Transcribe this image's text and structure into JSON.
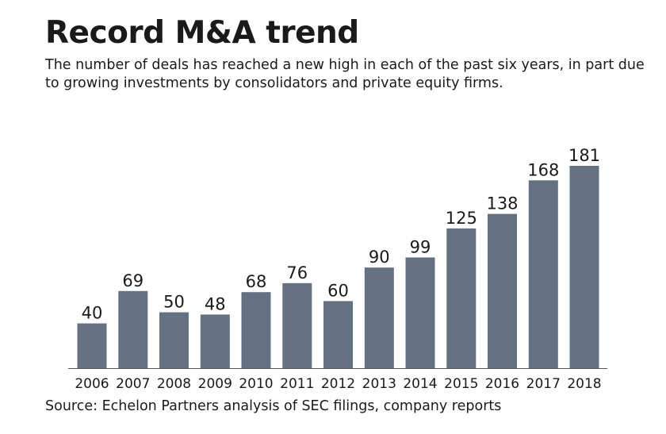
{
  "header": {
    "title": "Record M&A trend",
    "subtitle": "The number of deals has reached a new high in each of the past six years, in part due to growing investments by consolidators and private equity firms."
  },
  "footer": {
    "source": "Source: Echelon Partners analysis of SEC filings, company reports"
  },
  "colors": {
    "bar": "#637183",
    "text": "#1a1a1a",
    "axis": "#555555"
  },
  "chart_data": {
    "type": "bar",
    "title": "Record M&A trend",
    "xlabel": "",
    "ylabel": "",
    "categories": [
      "2006",
      "2007",
      "2008",
      "2009",
      "2010",
      "2011",
      "2012",
      "2013",
      "2014",
      "2015",
      "2016",
      "2017",
      "2018"
    ],
    "values": [
      40,
      69,
      50,
      48,
      68,
      76,
      60,
      90,
      99,
      125,
      138,
      168,
      181
    ],
    "ylim": [
      0,
      181
    ],
    "grid": false,
    "data_labels": true
  }
}
